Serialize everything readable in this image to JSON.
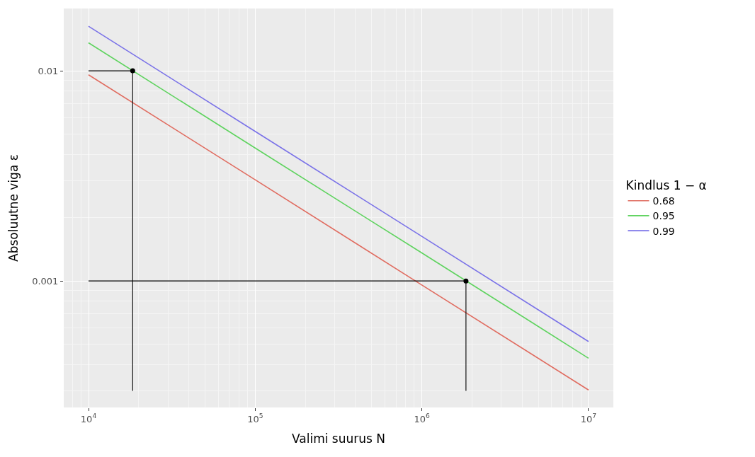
{
  "chart_data": {
    "type": "line",
    "xlabel": "Valimi suurus N",
    "ylabel": "Absoluutne viga ε",
    "legend_title": "Kindlus 1 − α",
    "series": [
      {
        "name": "0.68",
        "color": "#e06c60",
        "x": [
          10000,
          100000,
          1000000,
          10000000
        ],
        "values": [
          0.00957,
          0.00303,
          0.000957,
          0.000303
        ]
      },
      {
        "name": "0.95",
        "color": "#5fd35f",
        "x": [
          10000,
          100000,
          1000000,
          10000000
        ],
        "values": [
          0.0136,
          0.00429,
          0.00136,
          0.000429
        ]
      },
      {
        "name": "0.99",
        "color": "#7a72e8",
        "x": [
          10000,
          100000,
          1000000,
          10000000
        ],
        "values": [
          0.0163,
          0.00515,
          0.00163,
          0.000515
        ]
      },
      {
        "type": "line",
        "color": "#000000",
        "x": [
          10000,
          18400,
          18400
        ],
        "values": [
          0.01,
          0.01,
          0.0003
        ]
      },
      {
        "type": "line",
        "color": "#000000",
        "x": [
          10000,
          1840000,
          1840000
        ],
        "values": [
          0.001,
          0.001,
          0.0003
        ]
      },
      {
        "type": "scatter",
        "color": "#000000",
        "marker": "circle",
        "x": [
          18400,
          1840000
        ],
        "values": [
          0.01,
          0.001
        ]
      }
    ],
    "log": "xy",
    "xlim": [
      7100,
      14100000
    ],
    "ylim": [
      0.00025,
      0.0198
    ],
    "xticks": [
      {
        "value": 10000,
        "label": "10$^{4}$"
      },
      {
        "value": 100000,
        "label": "10$^{5}$"
      },
      {
        "value": 1000000,
        "label": "10$^{6}$"
      },
      {
        "value": 10000000,
        "label": "10$^{7}$"
      }
    ],
    "yticks": [
      0.001,
      0.01
    ],
    "grid": true,
    "legend": "right"
  }
}
